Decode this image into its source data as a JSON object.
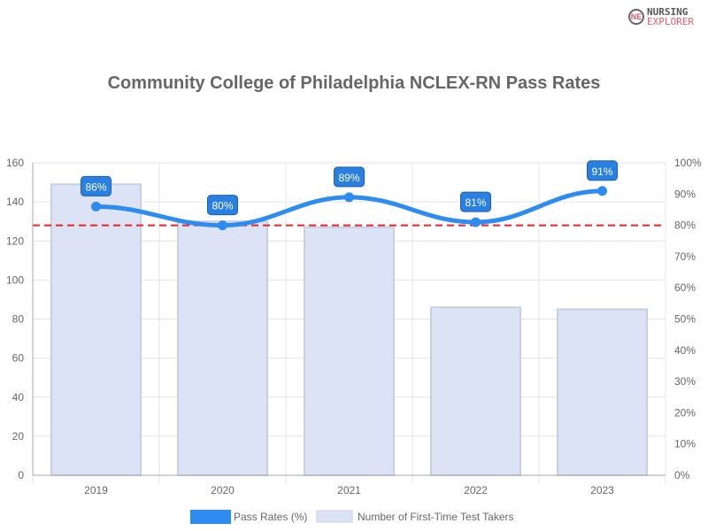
{
  "logo": {
    "line1": "NURSING",
    "line2": "EXPLORER",
    "mark": "NE"
  },
  "chart_data": {
    "type": "bar",
    "title": "Community College of Philadelphia NCLEX-RN Pass Rates",
    "categories": [
      "2019",
      "2020",
      "2021",
      "2022",
      "2023"
    ],
    "series": [
      {
        "name": "Pass Rates (%)",
        "type": "line",
        "axis": "right",
        "values": [
          86,
          80,
          89,
          81,
          91
        ],
        "labels": [
          "86%",
          "80%",
          "89%",
          "81%",
          "91%"
        ],
        "color": "#2e8cf0"
      },
      {
        "name": "Number of First-Time Test Takers",
        "type": "bar",
        "axis": "left",
        "values": [
          149,
          130,
          127,
          86,
          85
        ],
        "color": "#dce3f5"
      }
    ],
    "left_axis": {
      "ylim": [
        0,
        160
      ],
      "ticks": [
        "0",
        "20",
        "40",
        "60",
        "80",
        "100",
        "120",
        "140",
        "160"
      ]
    },
    "right_axis": {
      "ylim": [
        0,
        100
      ],
      "ticks": [
        "0%",
        "10%",
        "20%",
        "30%",
        "40%",
        "50%",
        "60%",
        "70%",
        "80%",
        "90%",
        "100%"
      ]
    },
    "reference_line": {
      "value": 80,
      "axis": "right",
      "color": "#e8202a",
      "style": "dashed"
    },
    "grid": true,
    "legend": "bottom"
  }
}
